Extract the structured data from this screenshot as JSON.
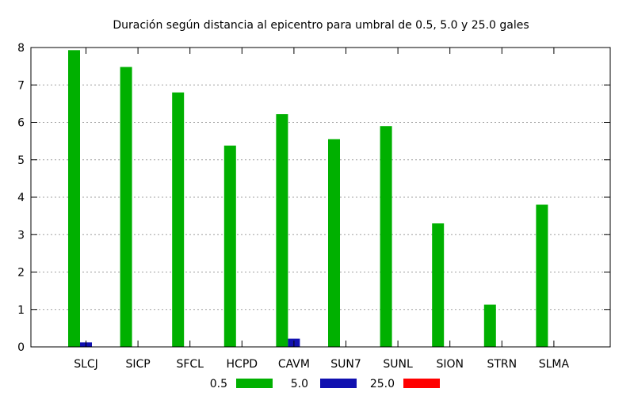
{
  "chart_data": {
    "type": "bar",
    "title": "Duración según distancia al epicentro para umbral de 0.5, 5.0 y 25.0 gales",
    "xlabel": "",
    "ylabel": "",
    "categories": [
      "SLCJ",
      "SICP",
      "SFCL",
      "HCPD",
      "CAVM",
      "SUN7",
      "SUNL",
      "SION",
      "STRN",
      "SLMA"
    ],
    "series": [
      {
        "name": "0.5",
        "color": "#00b000",
        "values": [
          7.93,
          7.48,
          6.8,
          5.38,
          6.22,
          5.55,
          5.9,
          3.3,
          1.13,
          3.8
        ]
      },
      {
        "name": "5.0",
        "color": "#1010b0",
        "values": [
          0.12,
          0,
          0,
          0,
          0.22,
          0,
          0,
          0,
          0,
          0
        ]
      },
      {
        "name": "25.0",
        "color": "#ff0000",
        "values": [
          0,
          0,
          0,
          0,
          0,
          0,
          0,
          0,
          0,
          0
        ]
      }
    ],
    "yticks": [
      "0",
      "1",
      "2",
      "3",
      "4",
      "5",
      "6",
      "7",
      "8"
    ],
    "ylim": [
      0,
      8
    ],
    "grid": true,
    "legend_position": "bottom"
  }
}
